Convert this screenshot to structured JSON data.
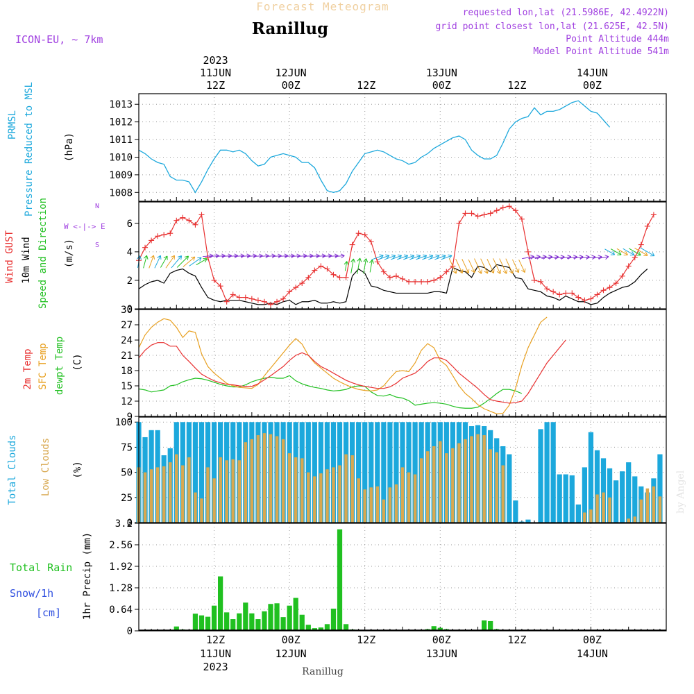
{
  "header": {
    "super_title": "Forecast Meteogram",
    "location": "Ranillug",
    "model": "ICON-EU, ~ 7km",
    "requested": "requested lon,lat (21.5986E, 42.4922N)",
    "grid_point": "grid point closest lon,lat (21.625E, 42.5N)",
    "point_alt": "Point Altitude 444m",
    "model_alt": "Model Point Altitude 541m",
    "watermark": "by Angel",
    "footer": "Ranillug"
  },
  "colors": {
    "pressure": "#1ca8dc",
    "gust": "#e83030",
    "wind": "#000000",
    "temp2m": "#e83030",
    "sfc": "#e8a020",
    "dew": "#20c020",
    "total_clouds": "#1ca8dc",
    "low_clouds": "#d8a850",
    "rain": "#20c020",
    "purple": "#a040e0"
  },
  "time_axis": {
    "top": [
      {
        "pos": 12,
        "label": "12Z",
        "date": "11JUN",
        "year": "2023"
      },
      {
        "pos": 24,
        "label": "00Z",
        "date": "12JUN"
      },
      {
        "pos": 36,
        "label": "12Z"
      },
      {
        "pos": 48,
        "label": "00Z",
        "date": "13JUN"
      },
      {
        "pos": 60,
        "label": "12Z"
      },
      {
        "pos": 72,
        "label": "00Z",
        "date": "14JUN"
      }
    ],
    "bottom": [
      {
        "pos": 12,
        "label": "12Z",
        "date": "11JUN",
        "year": "2023"
      },
      {
        "pos": 24,
        "label": "00Z",
        "date": "12JUN"
      },
      {
        "pos": 36,
        "label": "12Z"
      },
      {
        "pos": 48,
        "label": "00Z",
        "date": "13JUN"
      },
      {
        "pos": 60,
        "label": "12Z"
      },
      {
        "pos": 72,
        "label": "00Z",
        "date": "14JUN"
      }
    ]
  },
  "chart_data": [
    {
      "type": "line",
      "id": "pressure",
      "label_lines": [
        "PRMSL",
        "Pressure Reduced to MSL"
      ],
      "ylabel": "(hPa)",
      "ylim": [
        1007.5,
        1013.6
      ],
      "yticks": [
        1008,
        1009,
        1010,
        1011,
        1012,
        1013
      ],
      "x_start": 0,
      "x_step": 1,
      "values": [
        1010.4,
        1010.2,
        1009.9,
        1009.7,
        1009.6,
        1008.9,
        1008.7,
        1008.7,
        1008.6,
        1008.0,
        1008.6,
        1009.3,
        1009.9,
        1010.4,
        1010.4,
        1010.3,
        1010.4,
        1010.2,
        1009.8,
        1009.5,
        1009.6,
        1010.0,
        1010.1,
        1010.2,
        1010.1,
        1010.0,
        1009.7,
        1009.7,
        1009.4,
        1008.7,
        1008.1,
        1008.0,
        1008.1,
        1008.5,
        1009.2,
        1009.7,
        1010.2,
        1010.3,
        1010.4,
        1010.3,
        1010.1,
        1009.9,
        1009.8,
        1009.6,
        1009.7,
        1010.0,
        1010.2,
        1010.5,
        1010.7,
        1010.9,
        1011.1,
        1011.2,
        1011.0,
        1010.4,
        1010.1,
        1009.9,
        1009.9,
        1010.1,
        1010.8,
        1011.6,
        1012.0,
        1012.2,
        1012.3,
        1012.8,
        1012.4,
        1012.6,
        1012.6,
        1012.7,
        1012.9,
        1013.1,
        1013.2,
        1012.9,
        1012.6,
        1012.5,
        1012.1,
        1011.7
      ]
    },
    {
      "type": "line",
      "id": "wind",
      "label_lines": [
        "Wind GUST",
        "10m Wind",
        "Speed and Direction"
      ],
      "ylabel": "(m/s)",
      "compass": "W <-|-> E",
      "ylim": [
        0,
        7.5
      ],
      "yticks": [
        0,
        2,
        4,
        6
      ],
      "x_start": 0,
      "x_step": 1,
      "series": [
        {
          "name": "Wind GUST",
          "values": [
            3.4,
            4.3,
            4.8,
            5.1,
            5.2,
            5.3,
            6.2,
            6.4,
            6.2,
            5.9,
            6.6,
            3.6,
            2.0,
            1.6,
            0.5,
            1.0,
            0.8,
            0.8,
            0.7,
            0.6,
            0.5,
            0.3,
            0.5,
            0.7,
            1.2,
            1.5,
            1.8,
            2.2,
            2.7,
            3.0,
            2.8,
            2.4,
            2.2,
            2.2,
            4.5,
            5.3,
            5.2,
            4.7,
            3.3,
            2.6,
            2.2,
            2.3,
            2.1,
            1.9,
            1.9,
            1.9,
            1.9,
            2.0,
            2.2,
            2.6,
            3.0,
            6.0,
            6.7,
            6.7,
            6.5,
            6.6,
            6.7,
            6.9,
            7.1,
            7.2,
            6.9,
            6.3,
            4.0,
            2.0,
            1.9,
            1.4,
            1.2,
            1.0,
            1.1,
            1.1,
            0.8,
            0.6,
            0.7,
            1.0,
            1.3,
            1.5,
            1.8,
            2.3,
            3.0,
            3.6,
            4.5,
            5.8,
            6.6
          ]
        },
        {
          "name": "10m Wind",
          "values": [
            1.4,
            1.7,
            1.9,
            2.0,
            1.8,
            2.5,
            2.7,
            2.8,
            2.5,
            2.3,
            1.5,
            0.8,
            0.6,
            0.5,
            0.6,
            0.6,
            0.6,
            0.5,
            0.4,
            0.3,
            0.3,
            0.4,
            0.3,
            0.5,
            0.6,
            0.3,
            0.5,
            0.5,
            0.6,
            0.4,
            0.4,
            0.5,
            0.4,
            0.5,
            2.3,
            2.8,
            2.5,
            1.6,
            1.5,
            1.3,
            1.2,
            1.1,
            1.1,
            1.1,
            1.1,
            1.1,
            1.1,
            1.2,
            1.2,
            1.1,
            2.9,
            2.7,
            2.6,
            2.2,
            3.0,
            2.9,
            2.6,
            3.1,
            3.0,
            2.9,
            2.2,
            2.1,
            1.4,
            1.3,
            1.2,
            0.9,
            0.8,
            0.6,
            0.9,
            0.7,
            0.5,
            0.5,
            0.3,
            0.4,
            0.8,
            1.1,
            1.3,
            1.5,
            1.6,
            1.9,
            2.4,
            2.8
          ]
        }
      ]
    },
    {
      "type": "line",
      "id": "temperature",
      "label_lines": [
        "2m Temp",
        "SFC Temp",
        "dewpt Temp"
      ],
      "ylabel": "(C)",
      "ylim": [
        9,
        30
      ],
      "yticks": [
        9,
        12,
        15,
        18,
        21,
        24,
        27,
        30
      ],
      "x_start": 0,
      "x_step": 1,
      "series": [
        {
          "name": "2m Temp",
          "values": [
            20.5,
            22.0,
            23.0,
            23.5,
            23.5,
            22.8,
            22.8,
            21.0,
            19.8,
            18.5,
            17.3,
            16.6,
            16.0,
            15.6,
            15.3,
            15.2,
            15.0,
            14.9,
            14.9,
            15.4,
            16.2,
            17.0,
            17.9,
            18.8,
            20.0,
            21.0,
            21.5,
            21.0,
            19.8,
            18.8,
            18.2,
            17.5,
            16.8,
            16.1,
            15.6,
            15.2,
            14.9,
            14.7,
            14.5,
            14.5,
            14.8,
            15.5,
            16.5,
            17.0,
            17.5,
            18.5,
            19.8,
            20.5,
            20.5,
            20.0,
            18.8,
            17.5,
            16.5,
            15.5,
            14.5,
            13.3,
            12.3,
            12.0,
            11.8,
            11.6,
            11.7,
            12.0,
            13.5,
            15.5,
            17.5,
            19.5,
            21.0,
            22.5,
            24.0
          ]
        },
        {
          "name": "SFC Temp",
          "values": [
            22.5,
            25.0,
            26.5,
            27.5,
            28.2,
            27.9,
            26.5,
            24.5,
            25.8,
            25.5,
            21.3,
            18.8,
            17.5,
            16.5,
            15.5,
            15.0,
            14.7,
            14.6,
            14.5,
            15.3,
            17.0,
            18.5,
            20.0,
            21.5,
            23.0,
            24.3,
            23.2,
            21.0,
            19.5,
            18.5,
            17.5,
            16.5,
            15.8,
            15.2,
            14.7,
            14.3,
            14.1,
            14.0,
            14.2,
            15.0,
            16.5,
            17.8,
            18.0,
            17.8,
            19.5,
            22.0,
            23.3,
            22.5,
            20.0,
            19.0,
            17.0,
            15.0,
            13.5,
            12.5,
            11.3,
            10.5,
            10.0,
            9.5,
            9.6,
            11.2,
            14.5,
            19.0,
            22.5,
            25.0,
            27.5,
            28.5
          ]
        },
        {
          "name": "dewpt Temp",
          "values": [
            14.4,
            14.2,
            13.8,
            14.0,
            14.2,
            15.0,
            15.2,
            15.8,
            16.2,
            16.5,
            16.4,
            16.1,
            15.7,
            15.3,
            15.0,
            14.8,
            14.8,
            15.2,
            15.8,
            16.2,
            16.5,
            16.7,
            16.5,
            16.5,
            17.0,
            16.0,
            15.4,
            15.0,
            14.7,
            14.5,
            14.2,
            14.0,
            14.1,
            14.3,
            14.8,
            15.0,
            14.9,
            13.8,
            13.1,
            13.0,
            13.3,
            12.8,
            12.6,
            12.1,
            11.2,
            11.4,
            11.6,
            11.7,
            11.6,
            11.4,
            11.0,
            10.7,
            10.6,
            10.6,
            10.8,
            11.6,
            12.5,
            13.5,
            14.3,
            14.3,
            14.0,
            13.5
          ]
        }
      ]
    },
    {
      "type": "bar",
      "id": "clouds",
      "label_lines": [
        "Total Clouds",
        "Low Clouds"
      ],
      "ylabel": "(%)",
      "ylim": [
        0,
        105
      ],
      "yticks": [
        0,
        25,
        50,
        75,
        100
      ],
      "x_start": 0,
      "x_step": 1,
      "series": [
        {
          "name": "Total Clouds",
          "values": [
            100,
            85,
            92,
            92,
            67,
            74,
            100,
            100,
            100,
            100,
            100,
            100,
            100,
            100,
            100,
            100,
            100,
            100,
            100,
            100,
            100,
            100,
            100,
            100,
            100,
            100,
            100,
            100,
            100,
            100,
            100,
            100,
            100,
            100,
            100,
            100,
            100,
            100,
            100,
            100,
            100,
            100,
            100,
            100,
            100,
            100,
            100,
            100,
            100,
            100,
            100,
            100,
            100,
            96,
            97,
            96,
            92,
            84,
            76,
            68,
            22,
            1,
            3,
            0,
            93,
            100,
            100,
            48,
            48,
            47,
            18,
            55,
            90,
            72,
            64,
            54,
            42,
            51,
            60,
            46,
            36,
            30,
            44,
            68
          ]
        },
        {
          "name": "Low Clouds",
          "values": [
            55,
            50,
            53,
            55,
            56,
            60,
            68,
            57,
            65,
            30,
            24,
            55,
            44,
            65,
            62,
            63,
            62,
            80,
            83,
            87,
            89,
            88,
            86,
            83,
            69,
            65,
            64,
            50,
            46,
            49,
            53,
            55,
            57,
            68,
            67,
            44,
            33,
            35,
            36,
            23,
            35,
            38,
            55,
            50,
            48,
            64,
            71,
            76,
            81,
            69,
            74,
            79,
            83,
            86,
            88,
            87,
            73,
            70,
            57,
            0,
            0,
            0,
            0,
            0,
            0,
            0,
            0,
            0,
            0,
            0,
            0,
            10,
            13,
            28,
            30,
            25,
            0,
            0,
            4,
            6,
            23,
            34,
            36,
            26
          ]
        }
      ]
    },
    {
      "type": "bar",
      "id": "precip",
      "label_lines": [
        "Total  Rain",
        "Snow/1h",
        "[cm]"
      ],
      "ylabel": "1hr Precip (mm)",
      "ylim": [
        0,
        3.2
      ],
      "yticks": [
        0,
        0.64,
        1.28,
        1.92,
        2.56,
        3.2
      ],
      "ytick_labels": [
        "0",
        "0.64",
        "1.28",
        "1.92",
        "2.56",
        "3.2"
      ],
      "x_start": 0,
      "x_step": 1,
      "values": [
        0,
        0,
        0,
        0,
        0,
        0,
        0.13,
        0.04,
        0,
        0.51,
        0.46,
        0.42,
        0.75,
        1.62,
        0.55,
        0.35,
        0.52,
        0.84,
        0.52,
        0.35,
        0.58,
        0.8,
        0.82,
        0.41,
        0.75,
        0.98,
        0.48,
        0.18,
        0.08,
        0.1,
        0.2,
        0.66,
        3.02,
        0.2,
        0.04,
        0,
        0,
        0,
        0,
        0,
        0,
        0,
        0,
        0,
        0,
        0,
        0.05,
        0.14,
        0.09,
        0.05,
        0,
        0,
        0,
        0,
        0.03,
        0.31,
        0.29,
        0.05,
        0.02,
        0,
        0,
        0,
        0,
        0,
        0,
        0,
        0,
        0,
        0,
        0,
        0,
        0,
        0,
        0,
        0,
        0,
        0,
        0,
        0,
        0,
        0,
        0,
        0,
        0
      ]
    }
  ]
}
